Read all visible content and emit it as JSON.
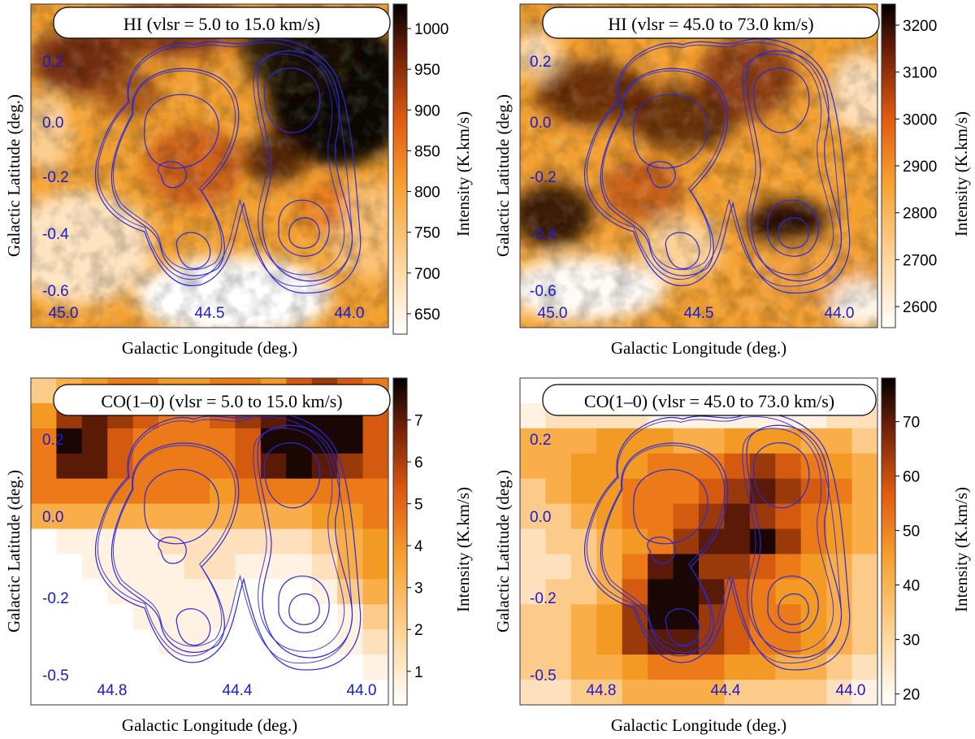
{
  "chart_data": [
    {
      "type": "heatmap",
      "title": "HI (vlsr = 5.0 to 15.0 km/s)",
      "xlabel": "Galactic Longitude (deg.)",
      "ylabel": "Galactic Latitude (deg.)",
      "colorbar_label": "Intensity (K.km/s)",
      "x_ticks": [
        "45.0",
        "44.5",
        "44.0"
      ],
      "y_ticks": [
        "0.2",
        "0.0",
        "-0.2",
        "-0.4",
        "-0.6"
      ],
      "colorbar_ticks": [
        "1000",
        "950",
        "900",
        "850",
        "800",
        "750",
        "700",
        "650"
      ],
      "colorbar_range": [
        625,
        1030
      ],
      "contour_color": "#2a2ad8"
    },
    {
      "type": "heatmap",
      "title": "HI (vlsr = 45.0 to 73.0 km/s)",
      "xlabel": "Galactic Longitude (deg.)",
      "ylabel": "Galactic Latitude (deg.)",
      "colorbar_label": "Intensity (K.km/s)",
      "x_ticks": [
        "45.0",
        "44.5",
        "44.0"
      ],
      "y_ticks": [
        "0.2",
        "0.0",
        "-0.2",
        "-0.4",
        "-0.6"
      ],
      "colorbar_ticks": [
        "3200",
        "3100",
        "3000",
        "2900",
        "2800",
        "2700",
        "2600"
      ],
      "colorbar_range": [
        2555,
        3245
      ],
      "contour_color": "#2a2ad8"
    },
    {
      "type": "heatmap",
      "title": "CO(1–0) (vlsr = 5.0 to 15.0 km/s)",
      "xlabel": "Galactic Longitude (deg.)",
      "ylabel": "Galactic Latitude (deg.)",
      "colorbar_label": "Intensity (K.km/s)",
      "x_ticks": [
        "44.8",
        "44.4",
        "44.0"
      ],
      "y_ticks": [
        "0.2",
        "0.0",
        "-0.2",
        "-0.5"
      ],
      "colorbar_ticks": [
        "7",
        "6",
        "5",
        "4",
        "3",
        "2",
        "1"
      ],
      "colorbar_range": [
        0.2,
        8.0
      ],
      "contour_color": "#2a2ad8"
    },
    {
      "type": "heatmap",
      "title": "CO(1–0) (vlsr = 45.0 to 73.0 km/s)",
      "xlabel": "Galactic Longitude (deg.)",
      "ylabel": "Galactic Latitude (deg.)",
      "colorbar_label": "Intensity (K.km/s)",
      "x_ticks": [
        "44.8",
        "44.4",
        "44.0"
      ],
      "y_ticks": [
        "0.2",
        "0.0",
        "-0.2",
        "-0.5"
      ],
      "colorbar_ticks": [
        "70",
        "60",
        "50",
        "40",
        "30",
        "20"
      ],
      "colorbar_range": [
        18,
        78
      ],
      "contour_color": "#2a2ad8"
    }
  ]
}
